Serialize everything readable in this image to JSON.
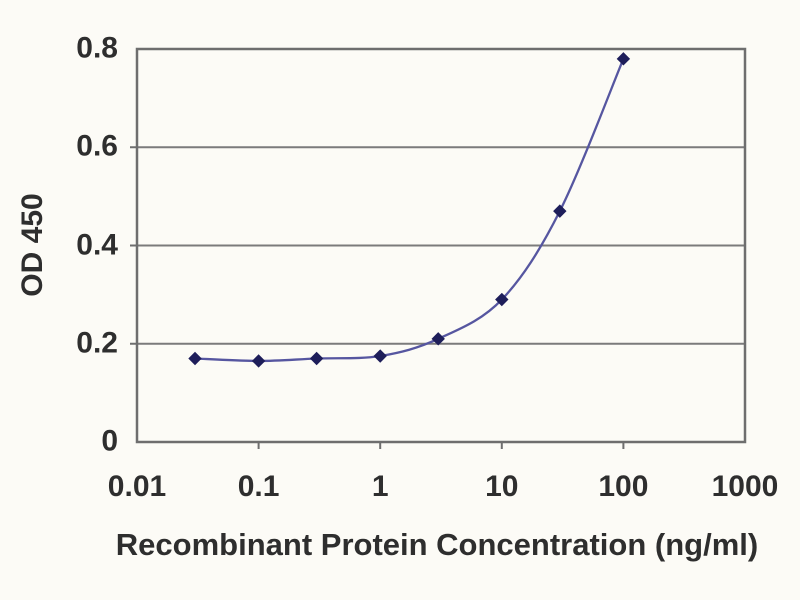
{
  "figure": {
    "background_color": "#fcfbf6",
    "line_color": "#5656a0",
    "marker_color": "#1e1e5a",
    "grid_color": "#7b7b7b",
    "border_color": "#6e6e6e",
    "text_color": "#2e2e2e"
  },
  "chart_data": {
    "type": "line",
    "title": "",
    "xlabel": "Recombinant Protein Concentration (ng/ml)",
    "ylabel": "OD 450",
    "x_scale": "log",
    "xlim": [
      0.01,
      1000
    ],
    "ylim": [
      0,
      0.8
    ],
    "x_ticks": [
      0.01,
      0.1,
      1,
      10,
      100,
      1000
    ],
    "x_tick_labels": [
      "0.01",
      "0.1",
      "1",
      "10",
      "100",
      "1000"
    ],
    "y_ticks": [
      0,
      0.2,
      0.4,
      0.6,
      0.8
    ],
    "y_tick_labels": [
      "0",
      "0.2",
      "0.4",
      "0.6",
      "0.8"
    ],
    "grid": "horizontal",
    "legend": "none",
    "series": [
      {
        "name": "OD 450",
        "marker": "diamond",
        "smooth": true,
        "x": [
          0.03,
          0.1,
          0.3,
          1,
          3,
          10,
          30,
          100
        ],
        "y": [
          0.17,
          0.165,
          0.17,
          0.175,
          0.21,
          0.29,
          0.47,
          0.78
        ]
      }
    ]
  }
}
